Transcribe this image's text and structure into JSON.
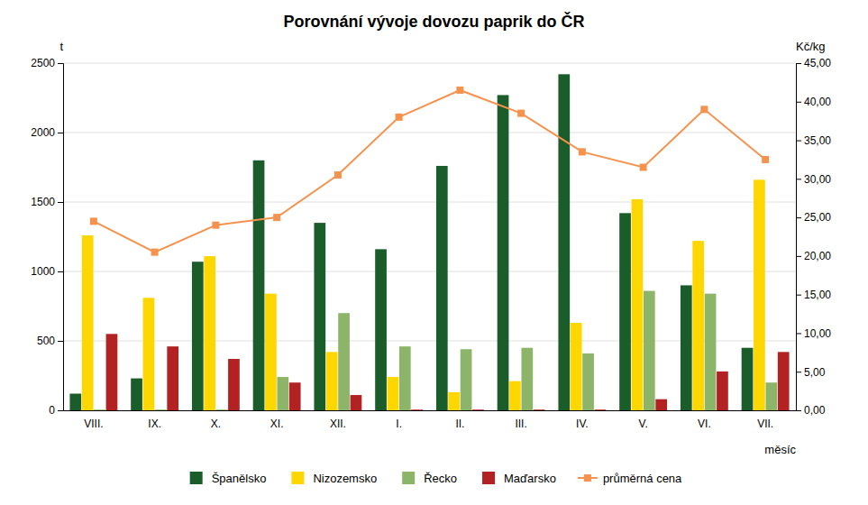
{
  "chart_data": {
    "type": "bar",
    "title": "Porovnání vývoje dovozu paprik do ČR",
    "x_label": "měsíc",
    "y_label": "t",
    "y2_label": "Kč/kg",
    "categories": [
      "VIII.",
      "IX.",
      "X.",
      "XI.",
      "XII.",
      "I.",
      "II.",
      "III.",
      "IV.",
      "V.",
      "VI.",
      "VII."
    ],
    "ylim": [
      0,
      2500
    ],
    "yticks": [
      0,
      500,
      1000,
      1500,
      2000,
      2500
    ],
    "y2lim": [
      0,
      45
    ],
    "y2ticks": [
      {
        "value": 0,
        "label": "0,00"
      },
      {
        "value": 5,
        "label": "5,00"
      },
      {
        "value": 10,
        "label": "10,00"
      },
      {
        "value": 15,
        "label": "15,00"
      },
      {
        "value": 20,
        "label": "20,00"
      },
      {
        "value": 25,
        "label": "25,00"
      },
      {
        "value": 30,
        "label": "30,00"
      },
      {
        "value": 35,
        "label": "35,00"
      },
      {
        "value": 40,
        "label": "40,00"
      },
      {
        "value": 45,
        "label": "45,00"
      }
    ],
    "grid": true,
    "legend": "bottom",
    "series": [
      {
        "name": "Španělsko",
        "type": "bar",
        "color": "#1a5c2a",
        "values": [
          120,
          230,
          1070,
          1800,
          1350,
          1160,
          1760,
          2270,
          2420,
          1420,
          900,
          450
        ]
      },
      {
        "name": "Nizozemsko",
        "type": "bar",
        "color": "#ffd700",
        "values": [
          1260,
          810,
          1110,
          840,
          420,
          240,
          130,
          210,
          630,
          1520,
          1220,
          1660
        ]
      },
      {
        "name": "Řecko",
        "type": "bar",
        "color": "#8db56a",
        "values": [
          5,
          5,
          5,
          240,
          700,
          460,
          440,
          450,
          410,
          860,
          840,
          200
        ]
      },
      {
        "name": "Maďarsko",
        "type": "bar",
        "color": "#b22222",
        "values": [
          550,
          460,
          370,
          200,
          110,
          5,
          5,
          5,
          5,
          80,
          280,
          420
        ]
      },
      {
        "name": "průměrná cena",
        "type": "line",
        "axis": "y2",
        "marker": "square",
        "color": "#f5924e",
        "values": [
          24.5,
          20.5,
          24.0,
          25.0,
          30.5,
          38.0,
          41.5,
          38.5,
          33.5,
          31.5,
          39.0,
          32.5
        ]
      }
    ]
  }
}
